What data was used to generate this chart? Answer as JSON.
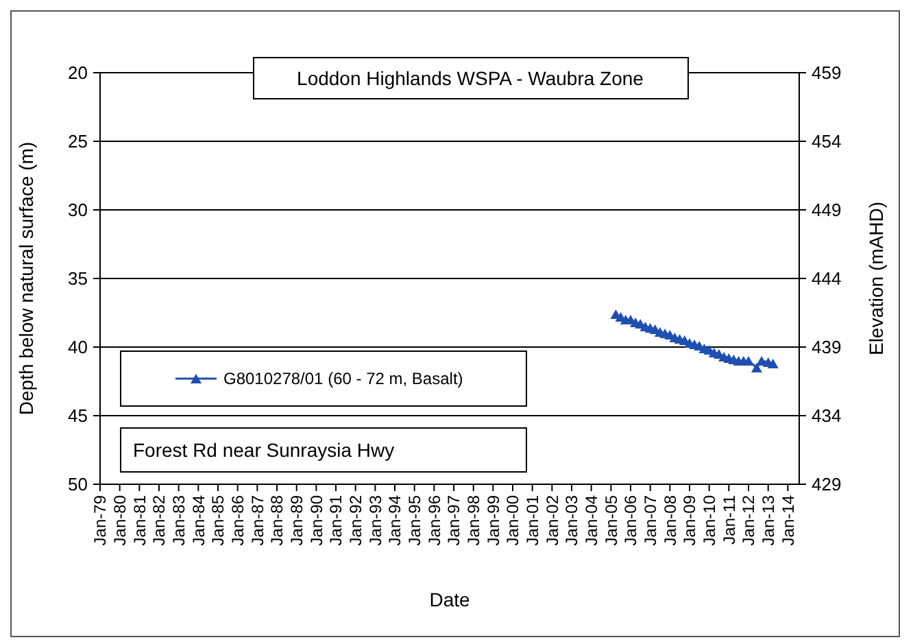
{
  "chart_data": {
    "type": "line",
    "title": "Loddon Highlands WSPA -  Waubra Zone",
    "xlabel": "Date",
    "ylabel": "Depth below natural surface (m)",
    "y2label": "Elevation (mAHD)",
    "annotations": [
      "Forest Rd near Sunraysia Hwy"
    ],
    "x": [
      "2005-04",
      "2005-07",
      "2005-10",
      "2006-01",
      "2006-04",
      "2006-07",
      "2006-10",
      "2007-01",
      "2007-04",
      "2007-07",
      "2007-10",
      "2008-01",
      "2008-04",
      "2008-07",
      "2008-10",
      "2009-01",
      "2009-04",
      "2009-07",
      "2009-10",
      "2010-01",
      "2010-04",
      "2010-07",
      "2010-10",
      "2011-01",
      "2011-04",
      "2011-07",
      "2011-10",
      "2012-01",
      "2012-06",
      "2012-09",
      "2013-01",
      "2013-04"
    ],
    "series": [
      {
        "name": "G8010278/01 (60 - 72 m, Basalt)",
        "color": "#1f4fb0",
        "values": [
          37.6,
          37.8,
          38.0,
          38.0,
          38.2,
          38.3,
          38.5,
          38.6,
          38.7,
          38.9,
          39.0,
          39.1,
          39.3,
          39.4,
          39.5,
          39.7,
          39.8,
          39.9,
          40.1,
          40.2,
          40.4,
          40.5,
          40.7,
          40.8,
          40.9,
          41.0,
          41.0,
          41.0,
          41.5,
          41.0,
          41.1,
          41.2
        ]
      }
    ],
    "xlim": [
      "1979-01",
      "2014-08"
    ],
    "xticks": [
      {
        "value": "1979-01",
        "label": "Jan-79"
      },
      {
        "value": "1980-01",
        "label": "Jan-80"
      },
      {
        "value": "1981-01",
        "label": "Jan-81"
      },
      {
        "value": "1982-01",
        "label": "Jan-82"
      },
      {
        "value": "1983-01",
        "label": "Jan-83"
      },
      {
        "value": "1984-01",
        "label": "Jan-84"
      },
      {
        "value": "1985-01",
        "label": "Jan-85"
      },
      {
        "value": "1986-01",
        "label": "Jan-86"
      },
      {
        "value": "1987-01",
        "label": "Jan-87"
      },
      {
        "value": "1988-01",
        "label": "Jan-88"
      },
      {
        "value": "1989-01",
        "label": "Jan-89"
      },
      {
        "value": "1990-01",
        "label": "Jan-90"
      },
      {
        "value": "1991-01",
        "label": "Jan-91"
      },
      {
        "value": "1992-01",
        "label": "Jan-92"
      },
      {
        "value": "1993-01",
        "label": "Jan-93"
      },
      {
        "value": "1994-01",
        "label": "Jan-94"
      },
      {
        "value": "1995-01",
        "label": "Jan-95"
      },
      {
        "value": "1996-01",
        "label": "Jan-96"
      },
      {
        "value": "1997-01",
        "label": "Jan-97"
      },
      {
        "value": "1998-01",
        "label": "Jan-98"
      },
      {
        "value": "1999-01",
        "label": "Jan-99"
      },
      {
        "value": "2000-01",
        "label": "Jan-00"
      },
      {
        "value": "2001-01",
        "label": "Jan-01"
      },
      {
        "value": "2002-01",
        "label": "Jan-02"
      },
      {
        "value": "2003-01",
        "label": "Jan-03"
      },
      {
        "value": "2004-01",
        "label": "Jan-04"
      },
      {
        "value": "2005-01",
        "label": "Jan-05"
      },
      {
        "value": "2006-01",
        "label": "Jan-06"
      },
      {
        "value": "2007-01",
        "label": "Jan-07"
      },
      {
        "value": "2008-01",
        "label": "Jan-08"
      },
      {
        "value": "2009-01",
        "label": "Jan-09"
      },
      {
        "value": "2010-01",
        "label": "Jan-10"
      },
      {
        "value": "2011-01",
        "label": "Jan-11"
      },
      {
        "value": "2012-01",
        "label": "Jan-12"
      },
      {
        "value": "2013-01",
        "label": "Jan-13"
      },
      {
        "value": "2014-01",
        "label": "Jan-14"
      }
    ],
    "ylim": [
      50,
      20
    ],
    "yticks": [
      20,
      25,
      30,
      35,
      40,
      45,
      50
    ],
    "y2lim": [
      429,
      459
    ],
    "y2ticks": [
      429,
      434,
      439,
      444,
      449,
      454,
      459
    ],
    "grid": "y",
    "legend": "left",
    "marker": "triangle",
    "line_style": "solid"
  }
}
